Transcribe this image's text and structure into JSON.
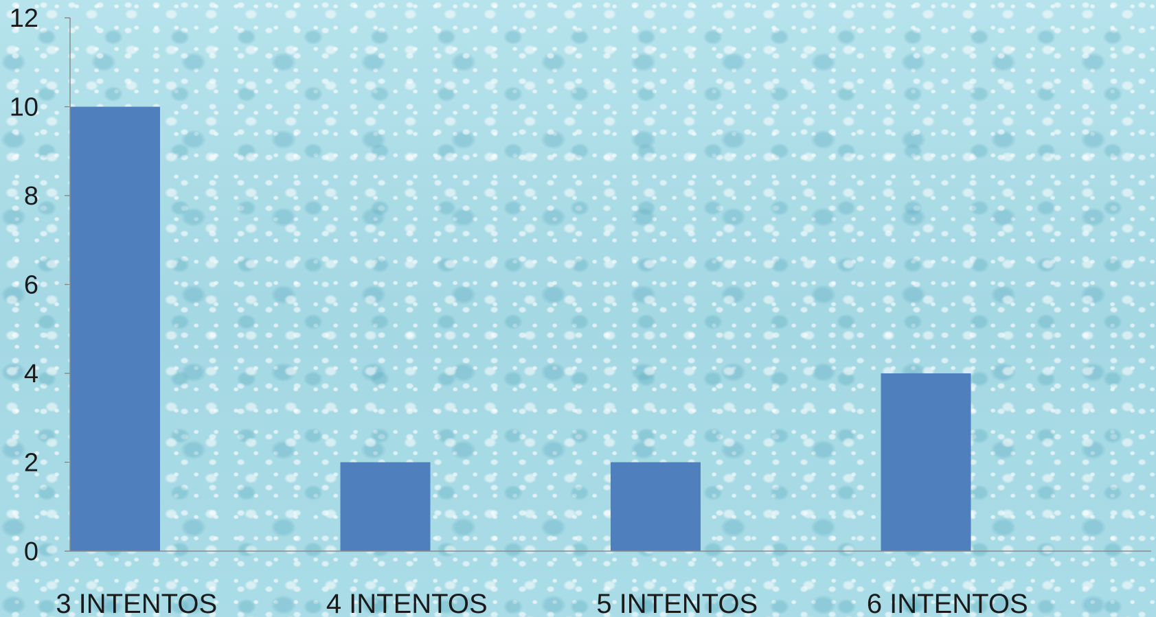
{
  "chart_data": {
    "type": "bar",
    "categories": [
      "3 INTENTOS",
      "4 INTENTOS",
      "5 INTENTOS",
      "6 INTENTOS"
    ],
    "series": [
      {
        "values": [
          10,
          2,
          2,
          4
        ]
      }
    ],
    "y_ticks": [
      "0",
      "2",
      "4",
      "6",
      "8",
      "10",
      "12"
    ],
    "ylim": [
      0,
      12
    ],
    "grid": false,
    "legend": "none",
    "colors": {
      "bar": "#4f7fbd",
      "axis": "#8a8a8a",
      "text": "#1a1a1a"
    }
  }
}
